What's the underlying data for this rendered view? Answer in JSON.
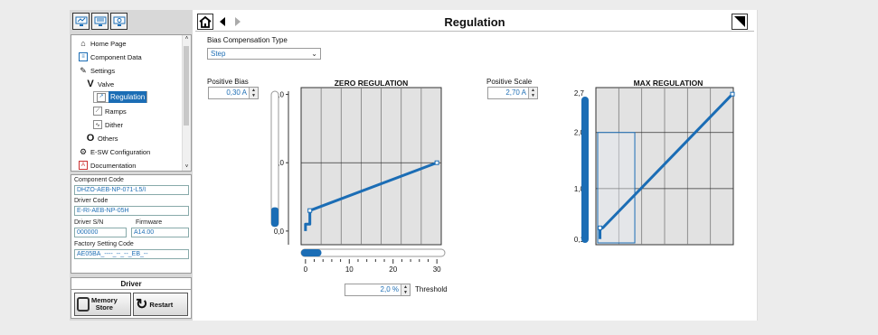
{
  "toolbar": {
    "icons": [
      "monitor-connect-icon",
      "monitor-settings-icon",
      "monitor-icon"
    ]
  },
  "nav": {
    "items": [
      {
        "label": "Home Page",
        "icon": "home-icon"
      },
      {
        "label": "Component Data",
        "icon": "data-icon"
      },
      {
        "label": "Settings",
        "icon": "pencil-icon"
      },
      {
        "label": "Valve",
        "icon": "valve-icon"
      },
      {
        "label": "Regulation",
        "icon": "regulation-icon"
      },
      {
        "label": "Ramps",
        "icon": "ramps-icon"
      },
      {
        "label": "Dither",
        "icon": "dither-icon"
      },
      {
        "label": "Others",
        "icon": "others-icon"
      },
      {
        "label": "E-SW Configuration",
        "icon": "configuration-icon"
      },
      {
        "label": "Documentation",
        "icon": "pdf-icon"
      }
    ]
  },
  "info": {
    "component_code_label": "Component Code",
    "component_code": "DHZO-AEB-NP-071-L5/I",
    "driver_code_label": "Driver Code",
    "driver_code": "E-RI-AEB-NP-05H",
    "driver_sn_label": "Driver S/N",
    "driver_sn": "000000",
    "firmware_label": "Firmware",
    "firmware": "A14.00",
    "factory_label": "Factory Setting Code",
    "factory_code": "AE05BA_----_--_--_EB_--"
  },
  "driver": {
    "title": "Driver",
    "memory_store": "Memory Store",
    "memory_line1": "Memory",
    "memory_line2": "Store",
    "restart": "Restart"
  },
  "header": {
    "title": "Regulation"
  },
  "bias": {
    "type_label": "Bias Compensation Type",
    "type_value": "Step"
  },
  "positive_bias": {
    "label": "Positive Bias",
    "value": "0,30 A"
  },
  "positive_scale": {
    "label": "Positive Scale",
    "value": "2,70 A"
  },
  "threshold": {
    "label": "Threshold",
    "value": "2,0 %"
  },
  "colors": {
    "accent": "#1b6db5",
    "grid": "#7a7a7a"
  },
  "chart_data": [
    {
      "type": "line",
      "title": "ZERO REGULATION",
      "xlim": [
        -1,
        31
      ],
      "ylim": [
        -0.2,
        2.1
      ],
      "xticks": [
        0,
        10,
        20,
        30
      ],
      "yticks": [
        {
          "v": 0,
          "label": "0,0"
        },
        {
          "v": 1,
          "label": "1,0"
        },
        {
          "v": 2,
          "label": "2,0"
        }
      ],
      "series": [
        {
          "points": [
            [
              0,
              0
            ],
            [
              0,
              0.1
            ],
            [
              1,
              0.1
            ],
            [
              1,
              0.3
            ],
            [
              30,
              1.0
            ]
          ]
        }
      ],
      "bias_slider": 0.3,
      "threshold_slider": 2.0
    },
    {
      "type": "line",
      "title": "MAX REGULATION",
      "xlim": [
        0,
        1
      ],
      "ylim": [
        0,
        2.8
      ],
      "yticks": [
        {
          "v": 0.1,
          "label": "0,1"
        },
        {
          "v": 1,
          "label": "1,0"
        },
        {
          "v": 2,
          "label": "2,0"
        },
        {
          "v": 2.7,
          "label": "2,7"
        }
      ],
      "series": [
        {
          "points": [
            [
              0.03,
              0.1
            ],
            [
              0.03,
              0.3
            ],
            [
              0.05,
              0.3
            ],
            [
              1,
              2.7
            ]
          ]
        }
      ],
      "scale_slider": 2.7
    }
  ]
}
